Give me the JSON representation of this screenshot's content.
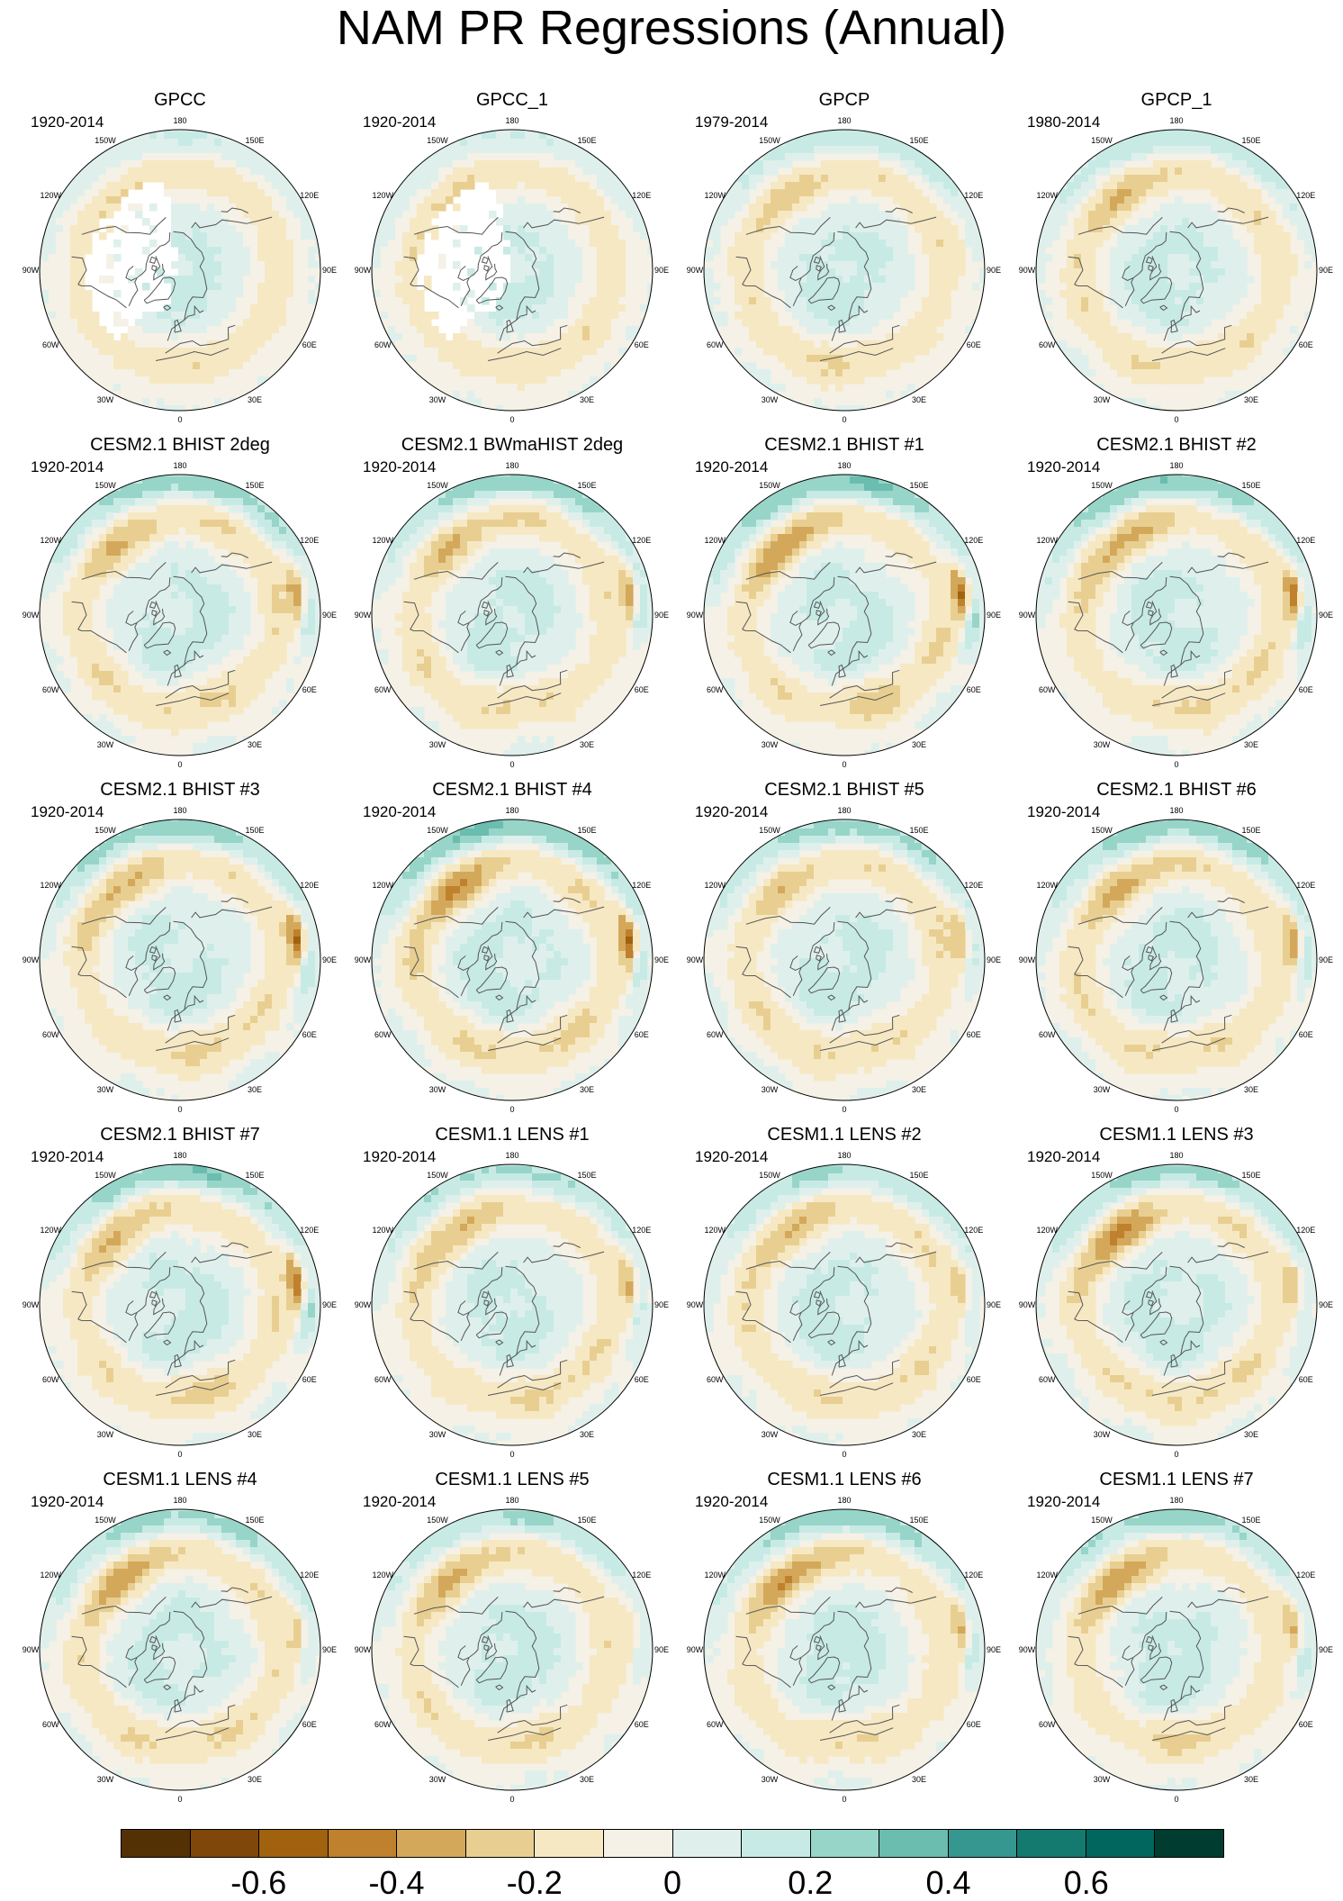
{
  "title": "NAM PR Regressions (Annual)",
  "lon_labels": [
    "180",
    "150E",
    "120E",
    "90E",
    "60E",
    "30E",
    "0",
    "30W",
    "60W",
    "90W",
    "120W",
    "150W"
  ],
  "panels": [
    {
      "title": "GPCC",
      "period": "1920-2014",
      "missing_land": true,
      "seed": 3,
      "strength": 0.25,
      "pacific_dry": 0.1,
      "blob": 0.0
    },
    {
      "title": "GPCC_1",
      "period": "1920-2014",
      "missing_land": true,
      "seed": 7,
      "strength": 0.25,
      "pacific_dry": 0.1,
      "blob": 0.0
    },
    {
      "title": "GPCP",
      "period": "1979-2014",
      "missing_land": false,
      "seed": 11,
      "strength": 0.4,
      "pacific_dry": 0.3,
      "blob": 0.1
    },
    {
      "title": "GPCP_1",
      "period": "1980-2014",
      "missing_land": false,
      "seed": 13,
      "strength": 0.4,
      "pacific_dry": 0.35,
      "blob": 0.1
    },
    {
      "title": "CESM2.1 BHIST 2deg",
      "period": "1920-2014",
      "missing_land": false,
      "seed": 17,
      "strength": 0.6,
      "pacific_dry": 0.35,
      "blob": 0.6
    },
    {
      "title": "CESM2.1 BWmaHIST 2deg",
      "period": "1920-2014",
      "missing_land": false,
      "seed": 19,
      "strength": 0.6,
      "pacific_dry": 0.4,
      "blob": 0.6
    },
    {
      "title": "CESM2.1 BHIST #1",
      "period": "1920-2014",
      "missing_land": false,
      "seed": 23,
      "strength": 0.7,
      "pacific_dry": 0.5,
      "blob": 0.9
    },
    {
      "title": "CESM2.1 BHIST #2",
      "period": "1920-2014",
      "missing_land": false,
      "seed": 29,
      "strength": 0.65,
      "pacific_dry": 0.45,
      "blob": 0.8
    },
    {
      "title": "CESM2.1 BHIST #3",
      "period": "1920-2014",
      "missing_land": false,
      "seed": 31,
      "strength": 0.6,
      "pacific_dry": 0.35,
      "blob": 0.8
    },
    {
      "title": "CESM2.1 BHIST #4",
      "period": "1920-2014",
      "missing_land": false,
      "seed": 37,
      "strength": 0.7,
      "pacific_dry": 0.55,
      "blob": 0.85
    },
    {
      "title": "CESM2.1 BHIST #5",
      "period": "1920-2014",
      "missing_land": false,
      "seed": 41,
      "strength": 0.55,
      "pacific_dry": 0.3,
      "blob": 0.5
    },
    {
      "title": "CESM2.1 BHIST #6",
      "period": "1920-2014",
      "missing_land": false,
      "seed": 43,
      "strength": 0.6,
      "pacific_dry": 0.45,
      "blob": 0.7
    },
    {
      "title": "CESM2.1 BHIST #7",
      "period": "1920-2014",
      "missing_land": false,
      "seed": 47,
      "strength": 0.65,
      "pacific_dry": 0.35,
      "blob": 0.85
    },
    {
      "title": "CESM1.1 LENS #1",
      "period": "1920-2014",
      "missing_land": false,
      "seed": 53,
      "strength": 0.5,
      "pacific_dry": 0.35,
      "blob": 0.5
    },
    {
      "title": "CESM1.1 LENS #2",
      "period": "1920-2014",
      "missing_land": false,
      "seed": 59,
      "strength": 0.5,
      "pacific_dry": 0.35,
      "blob": 0.4
    },
    {
      "title": "CESM1.1 LENS #3",
      "period": "1920-2014",
      "missing_land": false,
      "seed": 61,
      "strength": 0.55,
      "pacific_dry": 0.6,
      "blob": 0.4
    },
    {
      "title": "CESM1.1 LENS #4",
      "period": "1920-2014",
      "missing_land": false,
      "seed": 67,
      "strength": 0.55,
      "pacific_dry": 0.5,
      "blob": 0.4
    },
    {
      "title": "CESM1.1 LENS #5",
      "period": "1920-2014",
      "missing_land": false,
      "seed": 71,
      "strength": 0.5,
      "pacific_dry": 0.45,
      "blob": 0.3
    },
    {
      "title": "CESM1.1 LENS #6",
      "period": "1920-2014",
      "missing_land": false,
      "seed": 73,
      "strength": 0.6,
      "pacific_dry": 0.65,
      "blob": 0.6
    },
    {
      "title": "CESM1.1 LENS #7",
      "period": "1920-2014",
      "missing_land": false,
      "seed": 79,
      "strength": 0.6,
      "pacific_dry": 0.6,
      "blob": 0.5
    }
  ],
  "colorbar": {
    "colors": [
      "#543005",
      "#7f4709",
      "#a1620f",
      "#bf812d",
      "#d4a85a",
      "#e8cf91",
      "#f6e8c3",
      "#f5f1e6",
      "#dff0ec",
      "#c7eae5",
      "#97d5c8",
      "#6abdaf",
      "#35978f",
      "#14796f",
      "#01665e",
      "#003c30"
    ],
    "levels": [
      -0.7,
      -0.6,
      -0.5,
      -0.4,
      -0.3,
      -0.2,
      -0.1,
      0,
      0.1,
      0.2,
      0.3,
      0.4,
      0.5,
      0.6,
      0.7
    ],
    "labels": [
      "-0.6",
      "-0.4",
      "-0.2",
      "0",
      "0.2",
      "0.4",
      "0.6"
    ]
  }
}
